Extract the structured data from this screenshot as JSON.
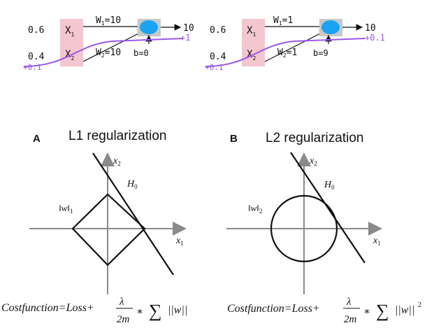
{
  "neuron_left": {
    "input1": "0.6",
    "input2": "0.4",
    "delta_in": "+0.1",
    "x1_main": "X",
    "x1_sub": "1",
    "x2_main": "X",
    "x2_sub": "2",
    "w1_main": "W",
    "w1_sub": "1",
    "w1_rest": "=10",
    "w2_main": "W",
    "w2_sub": "2",
    "w2_rest": "=10",
    "bias": "b=0",
    "output": "10",
    "delta_out": "+1"
  },
  "neuron_right": {
    "input1": "0.6",
    "input2": "0.4",
    "delta_in": "+0.1",
    "x1_main": "X",
    "x1_sub": "1",
    "x2_main": "X",
    "x2_sub": "2",
    "w1_main": "W",
    "w1_sub": "1",
    "w1_rest": "=1",
    "w2_main": "W",
    "w2_sub": "2",
    "w2_rest": "=1",
    "bias": "b=9",
    "output": "10",
    "delta_out": "+0.1"
  },
  "panel_l1": {
    "letter": "A",
    "title": "L1 regularization",
    "axis_y": "x",
    "axis_y_sub": "2",
    "axis_x": "x",
    "axis_x_sub": "1",
    "hypothesis": "H",
    "hypothesis_sub": "0",
    "norm": "‖w‖",
    "norm_sub": "1"
  },
  "panel_l2": {
    "letter": "B",
    "title": "L2 regularization",
    "axis_y": "x",
    "axis_y_sub": "2",
    "axis_x": "x",
    "axis_x_sub": "1",
    "hypothesis": "H",
    "hypothesis_sub": "0",
    "norm": "‖w‖",
    "norm_sub": "2"
  },
  "formula_l1": {
    "lhs": "Costfunction=Loss+",
    "num": "λ",
    "den": "2m",
    "op": "∗",
    "sum": "∑",
    "term": "||w||"
  },
  "formula_l2": {
    "lhs": "Costfunction=Loss+",
    "num": "λ",
    "den": "2m",
    "op": "∗",
    "sum": "∑",
    "term": "||w||",
    "power": "2"
  },
  "colors": {
    "input_box": "#f4c6cf",
    "neuron_body": "#1aa3f2",
    "neuron_box": "#c8c8c8",
    "purple": "#9b59e6",
    "ink": "#111111",
    "axis_gray": "#8a8a8a"
  }
}
